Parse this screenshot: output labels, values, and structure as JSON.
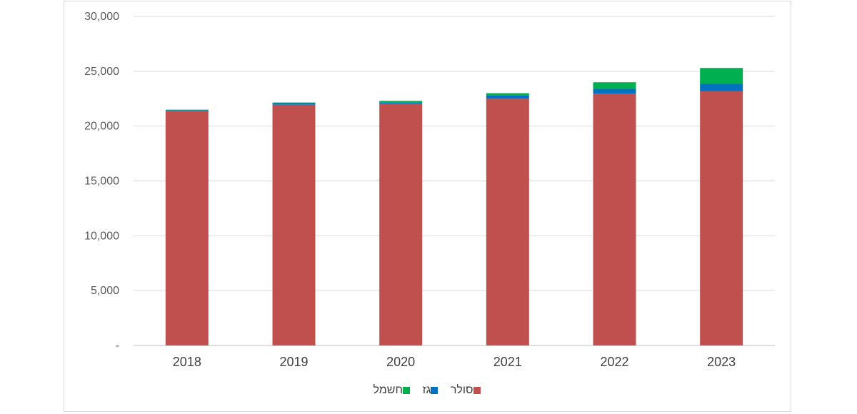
{
  "chart_data": {
    "type": "bar",
    "stacked": true,
    "categories": [
      "2018",
      "2019",
      "2020",
      "2021",
      "2022",
      "2023"
    ],
    "series": [
      {
        "name": "סולר",
        "color": "#c0504d",
        "values": [
          21400,
          21950,
          22050,
          22500,
          22950,
          23200
        ]
      },
      {
        "name": "גז",
        "color": "#0070c0",
        "values": [
          50,
          150,
          100,
          300,
          450,
          650
        ]
      },
      {
        "name": "חשמל",
        "color": "#00b050",
        "values": [
          50,
          50,
          150,
          200,
          600,
          1450
        ]
      }
    ],
    "y_ticks": [
      "-",
      "5,000",
      "10,000",
      "15,000",
      "20,000",
      "25,000",
      "30,000"
    ],
    "y_tick_values": [
      0,
      5000,
      10000,
      15000,
      20000,
      25000,
      30000
    ],
    "ylim": [
      0,
      30000
    ],
    "grid": true,
    "legend_position": "bottom"
  }
}
